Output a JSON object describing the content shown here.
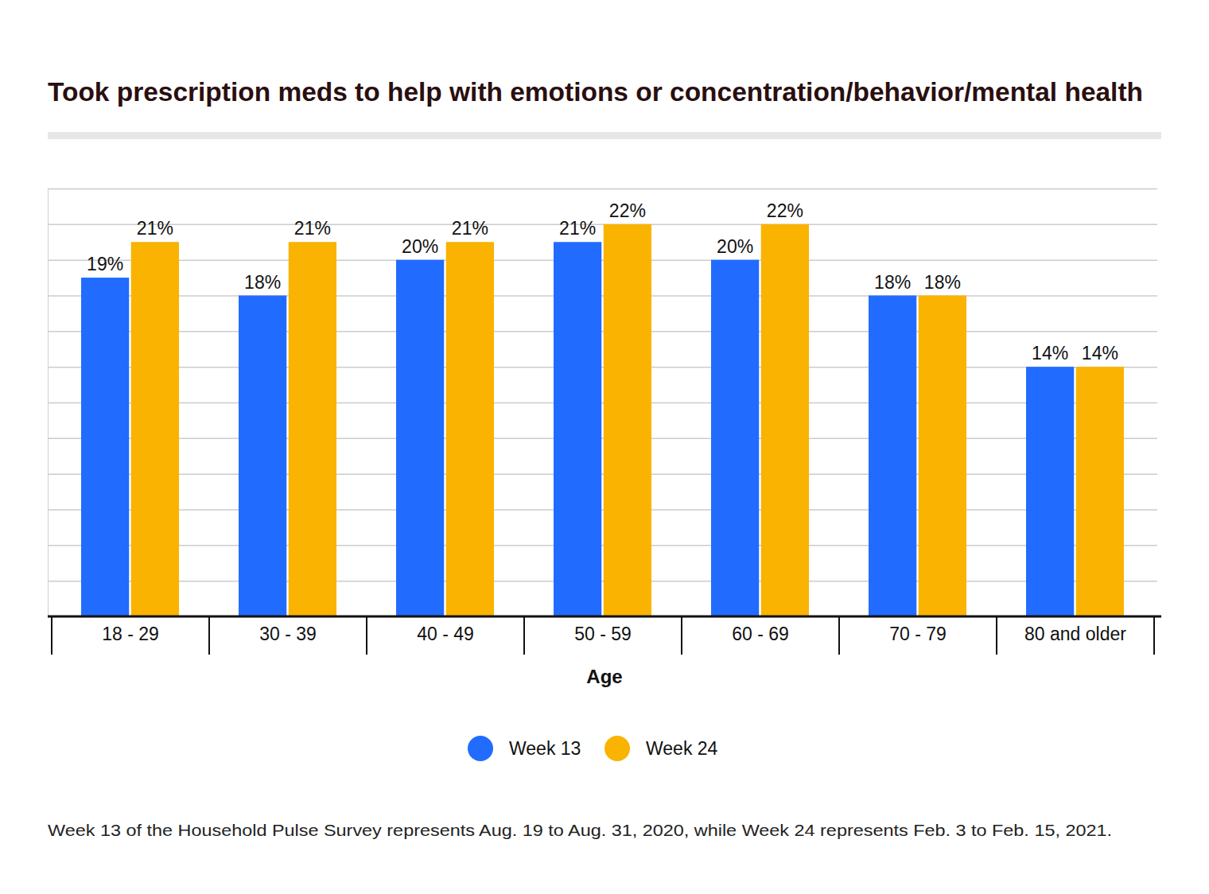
{
  "chart_data": {
    "type": "bar",
    "title": "Took prescription meds to help with emotions or concentration/behavior/mental health",
    "x_label": "Age",
    "footnote": "Week 13 of the Household Pulse Survey represents Aug. 19 to Aug. 31, 2020, while Week 24 represents Feb. 3 to Feb. 15, 2021.",
    "categories": [
      "18 - 29",
      "30 - 39",
      "40 - 49",
      "50 - 59",
      "60 - 69",
      "70 - 79",
      "80 and older"
    ],
    "series": [
      {
        "name": "Week 13",
        "color": "#216cff",
        "values": [
          19,
          18,
          20,
          21,
          20,
          18,
          14
        ],
        "value_labels": [
          "19%",
          "18%",
          "20%",
          "21%",
          "20%",
          "18%",
          "14%"
        ]
      },
      {
        "name": "Week 24",
        "color": "#f9b300",
        "values": [
          21,
          21,
          21,
          22,
          22,
          18,
          14
        ],
        "value_labels": [
          "21%",
          "21%",
          "21%",
          "22%",
          "22%",
          "18%",
          "14%"
        ]
      }
    ],
    "ylim": [
      0,
      24
    ],
    "yticks": [
      0,
      2,
      4,
      6,
      8,
      10,
      12,
      14,
      16,
      18,
      20,
      22,
      24
    ],
    "grid": true,
    "data_labels": true,
    "tick_labels": "x",
    "legend": "bottom"
  }
}
